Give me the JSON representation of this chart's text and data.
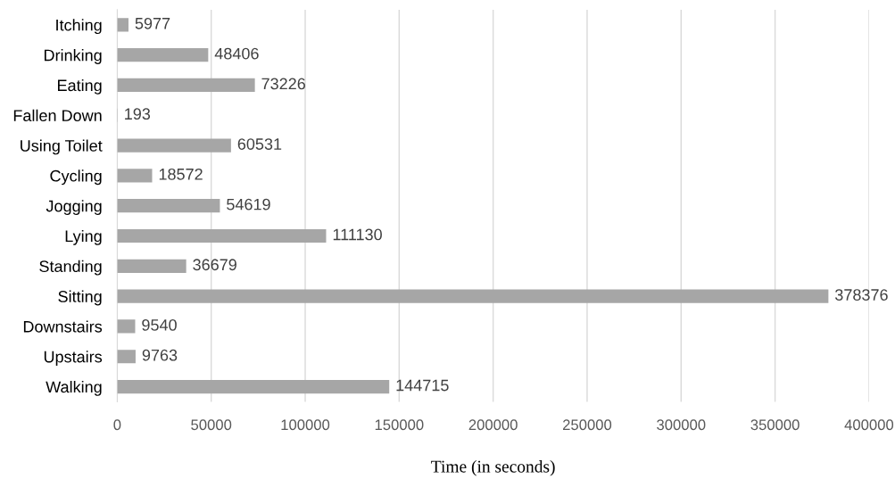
{
  "chart_data": {
    "type": "bar",
    "orientation": "horizontal",
    "xlabel": "Time (in seconds)",
    "categories": [
      "Itching",
      "Drinking",
      "Eating",
      "Fallen Down",
      "Using Toilet",
      "Cycling",
      "Jogging",
      "Lying",
      "Standing",
      "Sitting",
      "Downstairs",
      "Upstairs",
      "Walking"
    ],
    "values": [
      5977,
      48406,
      73226,
      193,
      60531,
      18572,
      54619,
      111130,
      36679,
      378376,
      9540,
      9763,
      144715
    ],
    "color": "#a6a6a6",
    "xlim": [
      0,
      400000
    ],
    "xticks": [
      0,
      50000,
      100000,
      150000,
      200000,
      250000,
      300000,
      350000,
      400000
    ],
    "grid": "x",
    "data_labels": true
  }
}
